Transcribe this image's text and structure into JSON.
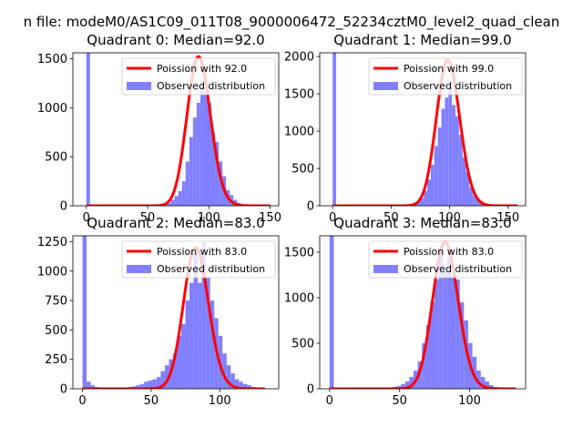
{
  "suptitle": "n file: modeM0/AS1C09_011T08_9000006472_52234cztM0_level2_quad_clean",
  "colors": {
    "hist": "#8080ff",
    "poisson": "#ff0000",
    "axis": "#000000"
  },
  "chart_data": [
    {
      "type": "bar",
      "title": "Quadrant 0: Median=92.0",
      "xlim": [
        -11,
        157
      ],
      "ylim": [
        0,
        1560
      ],
      "xticks": [
        0,
        50,
        100,
        150
      ],
      "yticks": [
        0,
        500,
        1000,
        1500
      ],
      "legend": [
        "Poission with 92.0",
        "Observed distribution"
      ],
      "legend_position": "upper-right",
      "bin_width": 3,
      "series": [
        {
          "name": "Observed distribution",
          "x": [
            0,
            60,
            63,
            66,
            69,
            72,
            75,
            78,
            81,
            84,
            87,
            90,
            93,
            96,
            99,
            102,
            105,
            108,
            111,
            114,
            117,
            120,
            123,
            126
          ],
          "values": [
            1600,
            10,
            15,
            30,
            60,
            100,
            150,
            250,
            450,
            700,
            900,
            1050,
            1250,
            1150,
            1050,
            750,
            650,
            450,
            300,
            160,
            110,
            60,
            30,
            15
          ]
        },
        {
          "name": "Poission with 92.0",
          "lambda": 92.0,
          "peak": 1520,
          "x_range": [
            0,
            150
          ]
        }
      ]
    },
    {
      "type": "bar",
      "title": "Quadrant 1: Median=99.0",
      "xlim": [
        -11,
        165
      ],
      "ylim": [
        0,
        2050
      ],
      "xticks": [
        0,
        50,
        100,
        150
      ],
      "yticks": [
        0,
        500,
        1000,
        1500,
        2000
      ],
      "legend": [
        "Poission with 99.0",
        "Observed distribution"
      ],
      "legend_position": "upper-right",
      "bin_width": 3,
      "series": [
        {
          "name": "Observed distribution",
          "x": [
            0,
            57,
            60,
            63,
            66,
            69,
            72,
            75,
            78,
            81,
            84,
            87,
            90,
            93,
            96,
            99,
            102,
            105,
            108,
            111,
            114,
            117,
            120,
            123,
            126,
            129,
            132
          ],
          "values": [
            2100,
            5,
            10,
            15,
            25,
            40,
            60,
            100,
            200,
            350,
            550,
            800,
            1050,
            1300,
            1450,
            1600,
            1350,
            1200,
            950,
            650,
            450,
            250,
            150,
            80,
            40,
            20,
            10
          ]
        },
        {
          "name": "Poission with 99.0",
          "lambda": 99.0,
          "peak": 1950,
          "x_range": [
            0,
            158
          ]
        }
      ]
    },
    {
      "type": "bar",
      "title": "Quadrant 2: Median=83.0",
      "xlim": [
        -7,
        143
      ],
      "ylim": [
        0,
        1300
      ],
      "xticks": [
        0,
        50,
        100
      ],
      "yticks": [
        0,
        250,
        500,
        750,
        1000,
        1250
      ],
      "legend": [
        "Poission with 83.0",
        "Observed distribution"
      ],
      "legend_position": "upper-right",
      "bin_width": 3,
      "series": [
        {
          "name": "Observed distribution",
          "x": [
            0,
            3,
            6,
            9,
            12,
            15,
            18,
            21,
            24,
            27,
            30,
            33,
            36,
            39,
            42,
            45,
            48,
            51,
            54,
            57,
            60,
            63,
            66,
            69,
            72,
            75,
            78,
            81,
            84,
            87,
            90,
            93,
            96,
            99,
            102,
            105,
            108,
            111,
            114,
            117,
            120,
            123
          ],
          "values": [
            1300,
            60,
            30,
            15,
            10,
            8,
            6,
            6,
            6,
            8,
            10,
            15,
            20,
            30,
            40,
            60,
            70,
            80,
            100,
            150,
            200,
            250,
            300,
            450,
            550,
            750,
            900,
            1150,
            900,
            1250,
            950,
            750,
            600,
            450,
            300,
            200,
            130,
            80,
            60,
            40,
            30,
            15
          ]
        },
        {
          "name": "Poission with 83.0",
          "lambda": 83.0,
          "peak": 1200,
          "x_range": [
            0,
            133
          ]
        }
      ]
    },
    {
      "type": "bar",
      "title": "Quadrant 3: Median=83.0",
      "xlim": [
        -7,
        140
      ],
      "ylim": [
        0,
        1680
      ],
      "xticks": [
        0,
        50,
        100
      ],
      "yticks": [
        0,
        500,
        1000,
        1500
      ],
      "legend": [
        "Poission with 83.0",
        "Observed distribution"
      ],
      "legend_position": "upper-right",
      "bin_width": 3,
      "series": [
        {
          "name": "Observed distribution",
          "x": [
            0,
            39,
            42,
            45,
            48,
            51,
            54,
            57,
            60,
            63,
            66,
            69,
            72,
            75,
            78,
            81,
            84,
            87,
            90,
            93,
            96,
            99,
            102,
            105,
            108,
            111,
            114,
            117
          ],
          "values": [
            1700,
            5,
            10,
            20,
            30,
            50,
            80,
            130,
            200,
            300,
            500,
            700,
            950,
            1200,
            1550,
            1300,
            1450,
            1250,
            1200,
            950,
            750,
            500,
            350,
            200,
            130,
            80,
            40,
            20
          ]
        },
        {
          "name": "Poission with 83.0",
          "lambda": 83.0,
          "peak": 1610,
          "x_range": [
            0,
            133
          ]
        }
      ]
    }
  ]
}
